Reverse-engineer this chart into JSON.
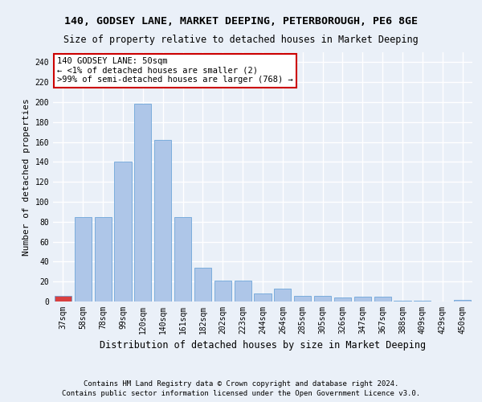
{
  "title": "140, GODSEY LANE, MARKET DEEPING, PETERBOROUGH, PE6 8GE",
  "subtitle": "Size of property relative to detached houses in Market Deeping",
  "xlabel": "Distribution of detached houses by size in Market Deeping",
  "ylabel": "Number of detached properties",
  "categories": [
    "37sqm",
    "58sqm",
    "78sqm",
    "99sqm",
    "120sqm",
    "140sqm",
    "161sqm",
    "182sqm",
    "202sqm",
    "223sqm",
    "244sqm",
    "264sqm",
    "285sqm",
    "305sqm",
    "326sqm",
    "347sqm",
    "367sqm",
    "388sqm",
    "409sqm",
    "429sqm",
    "450sqm"
  ],
  "values": [
    6,
    85,
    85,
    140,
    198,
    162,
    85,
    34,
    21,
    21,
    8,
    13,
    6,
    6,
    4,
    5,
    5,
    1,
    1,
    0,
    2
  ],
  "bar_color": "#aec6e8",
  "highlight_bar_index": 0,
  "highlight_bar_color": "#d94040",
  "bar_edge_color": "#5b9bd5",
  "annotation_text": "140 GODSEY LANE: 50sqm\n← <1% of detached houses are smaller (2)\n>99% of semi-detached houses are larger (768) →",
  "annotation_box_facecolor": "#ffffff",
  "annotation_box_edgecolor": "#cc0000",
  "ylim": [
    0,
    250
  ],
  "yticks": [
    0,
    20,
    40,
    60,
    80,
    100,
    120,
    140,
    160,
    180,
    200,
    220,
    240
  ],
  "footer1": "Contains HM Land Registry data © Crown copyright and database right 2024.",
  "footer2": "Contains public sector information licensed under the Open Government Licence v3.0.",
  "bg_color": "#eaf0f8",
  "plot_bg_color": "#eaf0f8",
  "grid_color": "#ffffff",
  "title_fontsize": 9.5,
  "subtitle_fontsize": 8.5,
  "xlabel_fontsize": 8.5,
  "ylabel_fontsize": 8,
  "tick_fontsize": 7,
  "annotation_fontsize": 7.5,
  "footer_fontsize": 6.5
}
